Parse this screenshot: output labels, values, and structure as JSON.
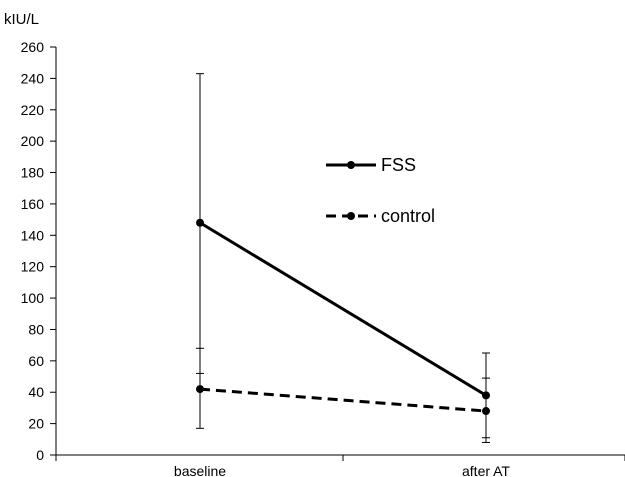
{
  "chart_data": {
    "type": "line",
    "ylabel": "kIU/L",
    "categories": [
      "baseline",
      "after AT"
    ],
    "ylim": [
      0,
      260
    ],
    "yticks": [
      0,
      20,
      40,
      60,
      80,
      100,
      120,
      140,
      160,
      180,
      200,
      220,
      240,
      260
    ],
    "grid": false,
    "legend_placement": "center",
    "series": [
      {
        "name": "FSS",
        "style": "solid",
        "color": "#000000",
        "values": [
          148,
          38
        ],
        "error_low": [
          17,
          11
        ],
        "error_high": [
          243,
          65
        ]
      },
      {
        "name": "control",
        "style": "dashed",
        "color": "#000000",
        "values": [
          42,
          28
        ],
        "error_low": [
          52,
          8
        ],
        "error_high": [
          68,
          49
        ]
      }
    ]
  }
}
